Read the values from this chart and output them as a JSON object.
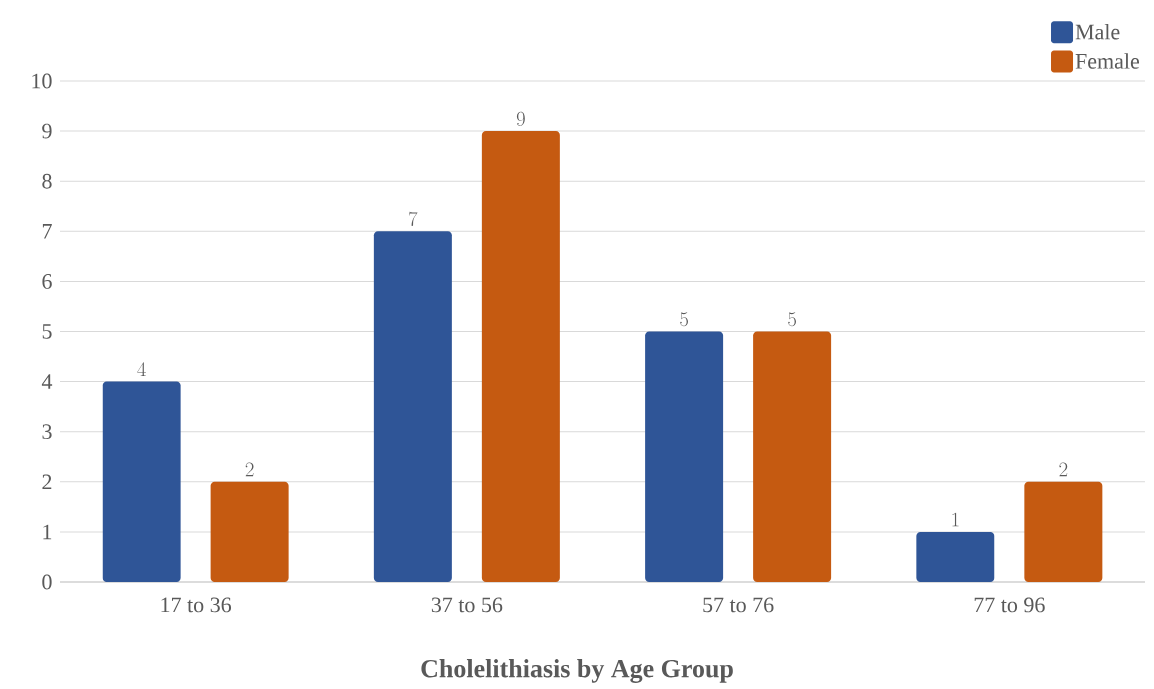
{
  "chart_data": {
    "type": "bar",
    "title": "Cholelithiasis by Age Group",
    "categories": [
      "17 to 36",
      "37 to 56",
      "57 to 76",
      "77 to 96"
    ],
    "series": [
      {
        "name": "Male",
        "color": "#2f5597",
        "values": [
          4,
          7,
          5,
          1
        ]
      },
      {
        "name": "Female",
        "color": "#c55a11",
        "values": [
          2,
          9,
          5,
          2
        ]
      }
    ],
    "ylim": [
      0,
      10
    ],
    "yticks": [
      0,
      1,
      2,
      3,
      4,
      5,
      6,
      7,
      8,
      9,
      10
    ],
    "grid": "y",
    "legend": "top right",
    "data_labels": true
  }
}
